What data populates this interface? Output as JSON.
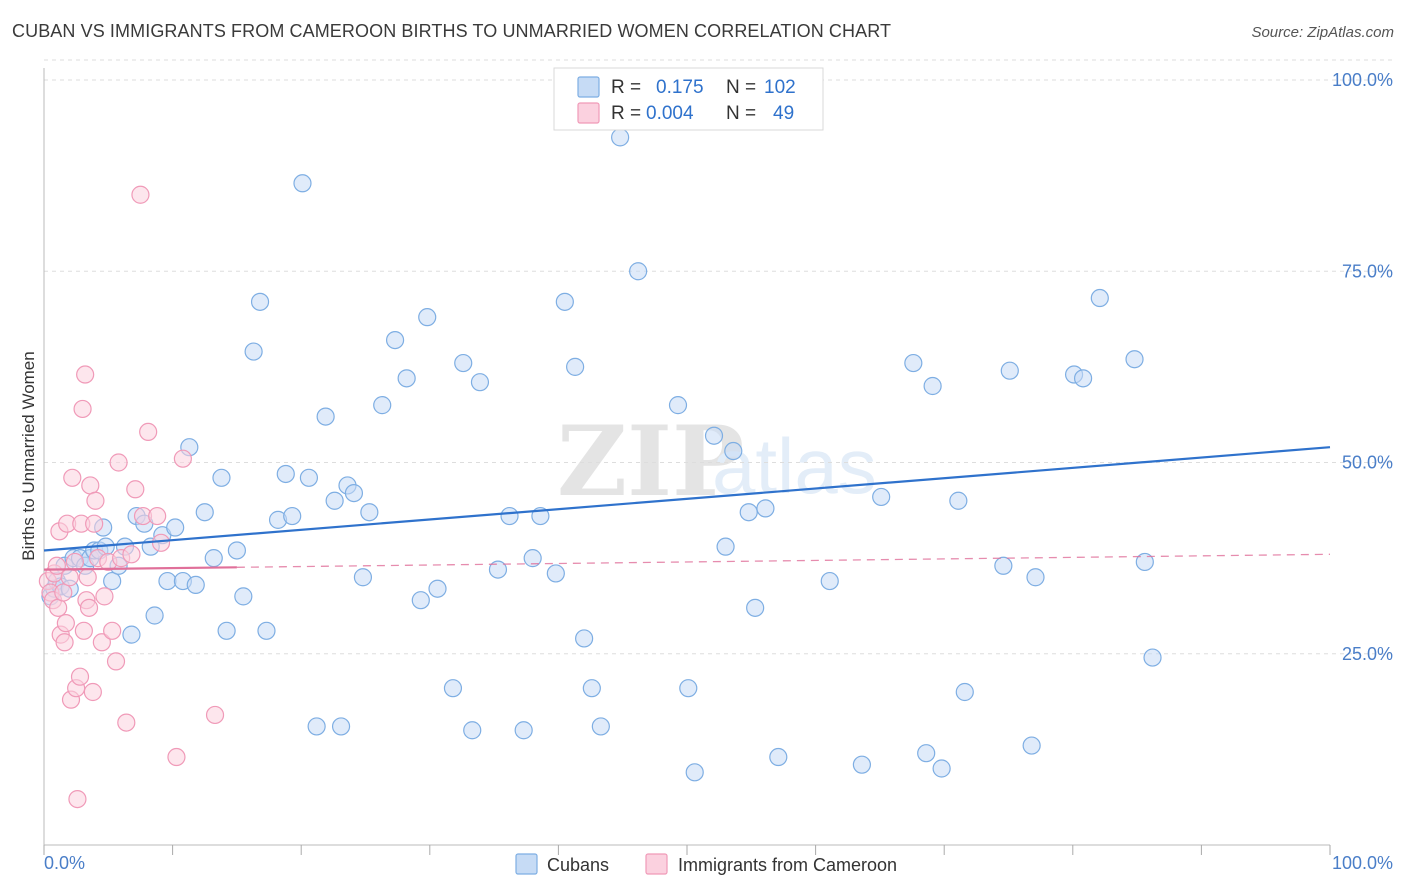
{
  "title": "CUBAN VS IMMIGRANTS FROM CAMEROON BIRTHS TO UNMARRIED WOMEN CORRELATION CHART",
  "source": "Source: ZipAtlas.com",
  "watermark": {
    "zip": "ZIP",
    "atlas": "atlas"
  },
  "legend": {
    "rows": [
      {
        "r_label": "R =",
        "r_value": "0.175",
        "n_label": "N =",
        "n_value": "102",
        "color": "#9dbfe8"
      },
      {
        "r_label": "R =",
        "r_value": "0.004",
        "n_label": "N =",
        "n_value": "49",
        "color": "#f4afc6"
      }
    ]
  },
  "bottom_legend": [
    {
      "label": "Cubans",
      "color": "#9dbfe8"
    },
    {
      "label": "Immigrants from Cameroon",
      "color": "#f4afc6"
    }
  ],
  "chart_data": {
    "type": "scatter",
    "ylabel": "Births to Unmarried Women",
    "xlim": [
      0,
      100
    ],
    "ylim": [
      0,
      100
    ],
    "x_tick_labels": {
      "left": "0.0%",
      "right": "100.0%"
    },
    "y_ticks": [
      {
        "value": 25,
        "label": "25.0%"
      },
      {
        "value": 50,
        "label": "50.0%"
      },
      {
        "value": 75,
        "label": "75.0%"
      },
      {
        "value": 100,
        "label": "100.0%"
      }
    ],
    "grid": true,
    "legend_position": "top-center",
    "colors": {
      "cubans_fill": "#c6dbf5",
      "cubans_stroke": "#7eaee3",
      "cubans_line": "#2f72cc",
      "cameroon_fill": "#fbd1df",
      "cameroon_stroke": "#f09ab8",
      "cameroon_line": "#e0709a"
    },
    "series": [
      {
        "name": "Cubans",
        "trend": {
          "x": [
            0,
            100
          ],
          "y": [
            38.5,
            52.0
          ],
          "style": "solid"
        },
        "points": [
          [
            0.5,
            32.5
          ],
          [
            0.8,
            33.5
          ],
          [
            1.0,
            34.5
          ],
          [
            1.3,
            33.8
          ],
          [
            1.6,
            36.5
          ],
          [
            2.0,
            33.5
          ],
          [
            2.3,
            37.5
          ],
          [
            2.8,
            37.5
          ],
          [
            3.2,
            36.5
          ],
          [
            3.6,
            37.5
          ],
          [
            3.9,
            38.5
          ],
          [
            4.3,
            38.5
          ],
          [
            4.6,
            41.5
          ],
          [
            4.8,
            39.0
          ],
          [
            5.3,
            34.5
          ],
          [
            5.8,
            36.5
          ],
          [
            6.3,
            39.0
          ],
          [
            6.8,
            27.5
          ],
          [
            7.2,
            43.0
          ],
          [
            7.8,
            42.0
          ],
          [
            8.3,
            39.0
          ],
          [
            8.6,
            30.0
          ],
          [
            9.2,
            40.5
          ],
          [
            9.6,
            34.5
          ],
          [
            10.2,
            41.5
          ],
          [
            10.8,
            34.5
          ],
          [
            11.3,
            52.0
          ],
          [
            11.8,
            34.0
          ],
          [
            12.5,
            43.5
          ],
          [
            13.2,
            37.5
          ],
          [
            13.8,
            48.0
          ],
          [
            14.2,
            28.0
          ],
          [
            15.0,
            38.5
          ],
          [
            15.5,
            32.5
          ],
          [
            16.3,
            64.5
          ],
          [
            16.8,
            71.0
          ],
          [
            17.3,
            28.0
          ],
          [
            18.2,
            42.5
          ],
          [
            18.8,
            48.5
          ],
          [
            19.3,
            43.0
          ],
          [
            20.1,
            86.5
          ],
          [
            20.6,
            48.0
          ],
          [
            21.2,
            15.5
          ],
          [
            21.9,
            56.0
          ],
          [
            22.6,
            45.0
          ],
          [
            23.1,
            15.5
          ],
          [
            23.6,
            47.0
          ],
          [
            24.1,
            46.0
          ],
          [
            24.8,
            35.0
          ],
          [
            25.3,
            43.5
          ],
          [
            26.3,
            57.5
          ],
          [
            27.3,
            66.0
          ],
          [
            28.2,
            61.0
          ],
          [
            29.3,
            32.0
          ],
          [
            29.8,
            69.0
          ],
          [
            30.6,
            33.5
          ],
          [
            31.8,
            20.5
          ],
          [
            32.6,
            63.0
          ],
          [
            33.3,
            15.0
          ],
          [
            33.9,
            60.5
          ],
          [
            35.3,
            36.0
          ],
          [
            36.2,
            43.0
          ],
          [
            37.3,
            15.0
          ],
          [
            38.0,
            37.5
          ],
          [
            38.6,
            43.0
          ],
          [
            39.8,
            35.5
          ],
          [
            40.5,
            71.0
          ],
          [
            41.3,
            62.5
          ],
          [
            42.0,
            27.0
          ],
          [
            42.6,
            20.5
          ],
          [
            43.3,
            15.5
          ],
          [
            44.8,
            92.5
          ],
          [
            46.2,
            75.0
          ],
          [
            49.3,
            57.5
          ],
          [
            50.1,
            20.5
          ],
          [
            50.6,
            9.5
          ],
          [
            52.1,
            53.5
          ],
          [
            53.0,
            39.0
          ],
          [
            53.6,
            51.5
          ],
          [
            54.8,
            43.5
          ],
          [
            55.3,
            31.0
          ],
          [
            56.1,
            44.0
          ],
          [
            57.1,
            11.5
          ],
          [
            61.1,
            34.5
          ],
          [
            63.6,
            10.5
          ],
          [
            65.1,
            45.5
          ],
          [
            67.6,
            63.0
          ],
          [
            68.6,
            12.0
          ],
          [
            69.1,
            60.0
          ],
          [
            69.8,
            10.0
          ],
          [
            71.1,
            45.0
          ],
          [
            71.6,
            20.0
          ],
          [
            74.6,
            36.5
          ],
          [
            75.1,
            62.0
          ],
          [
            76.8,
            13.0
          ],
          [
            77.1,
            35.0
          ],
          [
            80.1,
            61.5
          ],
          [
            80.8,
            61.0
          ],
          [
            82.1,
            71.5
          ],
          [
            84.8,
            63.5
          ],
          [
            85.6,
            37.0
          ],
          [
            86.2,
            24.5
          ]
        ]
      },
      {
        "name": "Immigrants from Cameroon",
        "trend": {
          "x": [
            0,
            100
          ],
          "y": [
            36.0,
            38.0
          ],
          "style": "dashed",
          "solid_until": 15
        },
        "points": [
          [
            0.3,
            34.5
          ],
          [
            0.5,
            33.0
          ],
          [
            0.7,
            32.0
          ],
          [
            0.8,
            35.5
          ],
          [
            1.0,
            36.5
          ],
          [
            1.1,
            31.0
          ],
          [
            1.2,
            41.0
          ],
          [
            1.3,
            27.5
          ],
          [
            1.5,
            33.0
          ],
          [
            1.6,
            26.5
          ],
          [
            1.7,
            29.0
          ],
          [
            1.8,
            42.0
          ],
          [
            2.0,
            35.0
          ],
          [
            2.1,
            19.0
          ],
          [
            2.2,
            48.0
          ],
          [
            2.4,
            37.0
          ],
          [
            2.5,
            20.5
          ],
          [
            2.6,
            6.0
          ],
          [
            2.8,
            22.0
          ],
          [
            2.9,
            42.0
          ],
          [
            3.0,
            57.0
          ],
          [
            3.1,
            28.0
          ],
          [
            3.2,
            61.5
          ],
          [
            3.3,
            32.0
          ],
          [
            3.4,
            35.0
          ],
          [
            3.5,
            31.0
          ],
          [
            3.6,
            47.0
          ],
          [
            3.8,
            20.0
          ],
          [
            3.9,
            42.0
          ],
          [
            4.0,
            45.0
          ],
          [
            4.2,
            37.5
          ],
          [
            4.5,
            26.5
          ],
          [
            4.7,
            32.5
          ],
          [
            5.0,
            37.0
          ],
          [
            5.3,
            28.0
          ],
          [
            5.6,
            24.0
          ],
          [
            5.8,
            50.0
          ],
          [
            6.0,
            37.5
          ],
          [
            6.4,
            16.0
          ],
          [
            6.8,
            38.0
          ],
          [
            7.1,
            46.5
          ],
          [
            7.5,
            85.0
          ],
          [
            7.7,
            43.0
          ],
          [
            8.1,
            54.0
          ],
          [
            8.8,
            43.0
          ],
          [
            9.1,
            39.5
          ],
          [
            10.3,
            11.5
          ],
          [
            10.8,
            50.5
          ],
          [
            13.3,
            17.0
          ]
        ]
      }
    ]
  }
}
